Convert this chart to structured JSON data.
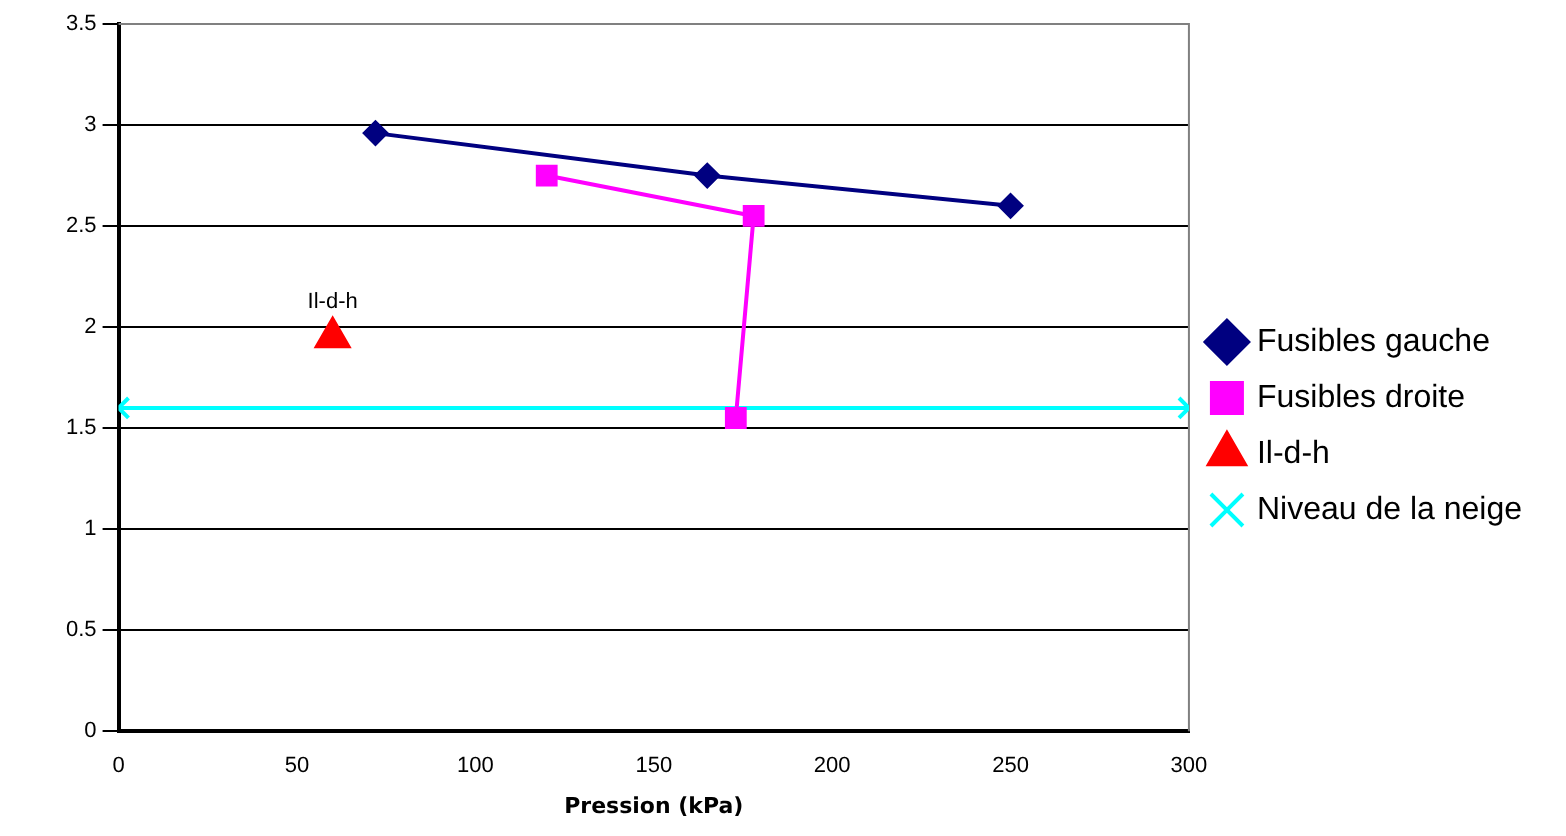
{
  "chart_data": {
    "type": "line",
    "xlabel": "Pression (kPa)",
    "xlim": [
      0,
      300
    ],
    "xticks": [
      0,
      50,
      100,
      150,
      200,
      250,
      300
    ],
    "ylim": [
      0,
      3.5
    ],
    "yticks": [
      0,
      0.5,
      1,
      1.5,
      2,
      2.5,
      3,
      3.5
    ],
    "grid": "y",
    "legend": "right",
    "annotations": [
      {
        "text": "Il-d-h",
        "x": 60,
        "y": 1.95
      }
    ],
    "series": [
      {
        "name": "Fusibles gauche",
        "color": "#000080",
        "marker": "diamond",
        "x": [
          72,
          165,
          250
        ],
        "values": [
          2.96,
          2.75,
          2.6
        ]
      },
      {
        "name": "Fusibles droite",
        "color": "#ff00ff",
        "marker": "square",
        "x": [
          120,
          178,
          173
        ],
        "values": [
          2.75,
          2.55,
          1.55
        ]
      },
      {
        "name": "Il-d-h",
        "color": "#ff0000",
        "marker": "triangle",
        "type": "scatter",
        "x": [
          60
        ],
        "values": [
          1.95
        ]
      },
      {
        "name": "Niveau de la neige",
        "color": "#00ffff",
        "marker": "cross",
        "x": [
          0,
          300
        ],
        "values": [
          1.6,
          1.6
        ]
      }
    ]
  }
}
